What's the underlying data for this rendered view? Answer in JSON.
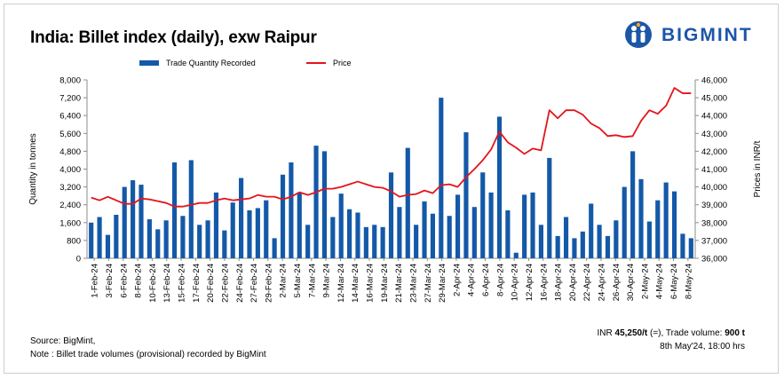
{
  "title": "India: Billet index (daily), exw Raipur",
  "logo": {
    "text": "BIGMINT",
    "color": "#1c56a8"
  },
  "legend": {
    "bar_label": "Trade Quantity Recorded",
    "line_label": "Price"
  },
  "footer": {
    "source": "Source: BigMint,",
    "note": "Note : Billet trade volumes (provisional) recorded by BigMint",
    "price_prefix": "INR ",
    "price_value": "45,250/t",
    "price_mid": " (=), Trade volume: ",
    "volume_value": "900 t",
    "timestamp": "8th May'24, 18:00 hrs"
  },
  "chart_data": {
    "type": "bar+line",
    "ylabel_left": "Quantity in tonnes",
    "ylabel_right": "Prices in INR/t",
    "ylim_left": [
      0,
      8000
    ],
    "ylim_right": [
      36000,
      46000
    ],
    "yticks_left": [
      "0",
      "800",
      "1,600",
      "2,400",
      "3,200",
      "4,000",
      "4,800",
      "5,600",
      "6,400",
      "7,200",
      "8,000"
    ],
    "yticks_right": [
      "36,000",
      "37,000",
      "38,000",
      "39,000",
      "40,000",
      "41,000",
      "42,000",
      "43,000",
      "44,000",
      "45,000",
      "46,000"
    ],
    "xtick_labels": [
      "1-Feb-24",
      "3-Feb-24",
      "6-Feb-24",
      "8-Feb-24",
      "10-Feb-24",
      "13-Feb-24",
      "15-Feb-24",
      "17-Feb-24",
      "20-Feb-24",
      "22-Feb-24",
      "24-Feb-24",
      "27-Feb-24",
      "29-Feb-24",
      "2-Mar-24",
      "5-Mar-24",
      "7-Mar-24",
      "9-Mar-24",
      "12-Mar-24",
      "14-Mar-24",
      "16-Mar-24",
      "19-Mar-24",
      "21-Mar-24",
      "23-Mar-24",
      "27-Mar-24",
      "29-Mar-24",
      "2-Apr-24",
      "4-Apr-24",
      "6-Apr-24",
      "8-Apr-24",
      "10-Apr-24",
      "12-Apr-24",
      "16-Apr-24",
      "18-Apr-24",
      "20-Apr-24",
      "22-Apr-24",
      "24-Apr-24",
      "26-Apr-24",
      "30-Apr-24",
      "2-May-24",
      "4-May-24",
      "6-May-24",
      "8-May-24"
    ],
    "series": [
      {
        "name": "Trade Quantity Recorded",
        "kind": "bar",
        "color": "#1459a8",
        "values": [
          1600,
          1850,
          1050,
          1950,
          3200,
          3500,
          3300,
          1750,
          1300,
          1700,
          4300,
          1900,
          4400,
          1500,
          1700,
          2950,
          1250,
          2500,
          3600,
          2150,
          2250,
          2600,
          900,
          3750,
          4300,
          2950,
          1500,
          5050,
          4800,
          1850,
          2900,
          2200,
          2050,
          1400,
          1500,
          1400,
          3850,
          2300,
          4950,
          1500,
          2550,
          2000,
          7200,
          1900,
          2850,
          5650,
          2300,
          3850,
          2950,
          6350,
          2150,
          250,
          2850,
          2950,
          1500,
          4500,
          1000,
          1850,
          900,
          1200,
          2450,
          1500,
          1000,
          1700,
          3200,
          4800,
          3550,
          1650,
          2600,
          3400,
          3000,
          1100,
          900
        ]
      },
      {
        "name": "Price",
        "kind": "line",
        "color": "#e3141b",
        "values": [
          39400,
          39250,
          39450,
          39250,
          39050,
          39050,
          39350,
          39300,
          39200,
          39100,
          38900,
          38900,
          39000,
          39100,
          39100,
          39250,
          39350,
          39250,
          39300,
          39350,
          39550,
          39450,
          39450,
          39300,
          39450,
          39700,
          39550,
          39700,
          39900,
          39900,
          40000,
          40150,
          40300,
          40150,
          40000,
          39950,
          39750,
          39450,
          39550,
          39600,
          39800,
          39650,
          40100,
          40150,
          40000,
          40550,
          41000,
          41500,
          42100,
          43100,
          42500,
          42200,
          41850,
          42150,
          42050,
          44300,
          43850,
          44300,
          44300,
          44050,
          43550,
          43300,
          42850,
          42900,
          42800,
          42850,
          43700,
          44300,
          44100,
          44550,
          45550,
          45250,
          45250
        ]
      }
    ]
  }
}
